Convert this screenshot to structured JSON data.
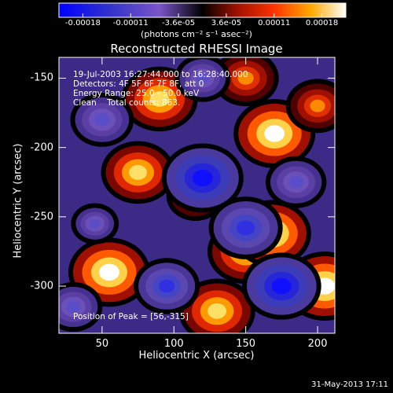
{
  "title": "Reconstructed RHESSI Image",
  "annotations": {
    "time_range": "19-Jul-2003 16:27:44.000 to 16:28:40.000",
    "detectors": "Detectors: 4F 5F 6F 7F 8F, att 0",
    "energy": "Energy Range: 25.0 - 50.0 keV",
    "clean": "Clean    Total counts: 863.",
    "peak": "Position of Peak = [56,-315]"
  },
  "footer_date": "31-May-2013 17:11",
  "colorbar": {
    "units_label": "(photons cm⁻² s⁻¹ asec⁻²)",
    "tick_labels": [
      "-0.00018",
      "-0.00011",
      "-3.6e-05",
      "3.6e-05",
      "0.00011",
      "0.00018"
    ],
    "range": [
      -0.00018,
      0.00018
    ]
  },
  "chart_data": {
    "type": "heatmap",
    "title": "Reconstructed RHESSI Image",
    "xlabel": "Heliocentric X (arcsec)",
    "ylabel": "Heliocentric Y (arcsec)",
    "xlim": [
      20,
      212
    ],
    "ylim": [
      -334,
      -135
    ],
    "x_ticks": [
      50,
      100,
      150,
      200
    ],
    "y_ticks": [
      -150,
      -200,
      -250,
      -300
    ],
    "colorscale": "red-temperature with blue negatives",
    "grid": false,
    "features": [
      {
        "x": 170,
        "y": -190,
        "value": 0.00018
      },
      {
        "x": 90,
        "y": -165,
        "value": 0.00016
      },
      {
        "x": 75,
        "y": -218,
        "value": 0.00015
      },
      {
        "x": 150,
        "y": -275,
        "value": 0.00016
      },
      {
        "x": 55,
        "y": -290,
        "value": 0.00018
      },
      {
        "x": 168,
        "y": -262,
        "value": 0.00017
      },
      {
        "x": 205,
        "y": -300,
        "value": 0.00018
      },
      {
        "x": 130,
        "y": -318,
        "value": 0.00016
      },
      {
        "x": 150,
        "y": -150,
        "value": 0.00012
      },
      {
        "x": 200,
        "y": -170,
        "value": 0.00011
      },
      {
        "x": 115,
        "y": -235,
        "value": 9e-05
      },
      {
        "x": 45,
        "y": -255,
        "value": -5e-05
      },
      {
        "x": 120,
        "y": -222,
        "value": -0.00018
      },
      {
        "x": 175,
        "y": -300,
        "value": -0.00017
      },
      {
        "x": 150,
        "y": -258,
        "value": -0.00015
      },
      {
        "x": 95,
        "y": -300,
        "value": -0.00012
      },
      {
        "x": 50,
        "y": -180,
        "value": -0.00011
      },
      {
        "x": 185,
        "y": -225,
        "value": -0.0001
      },
      {
        "x": 120,
        "y": -150,
        "value": -8e-05
      },
      {
        "x": 30,
        "y": -315,
        "value": -9e-05
      }
    ]
  }
}
